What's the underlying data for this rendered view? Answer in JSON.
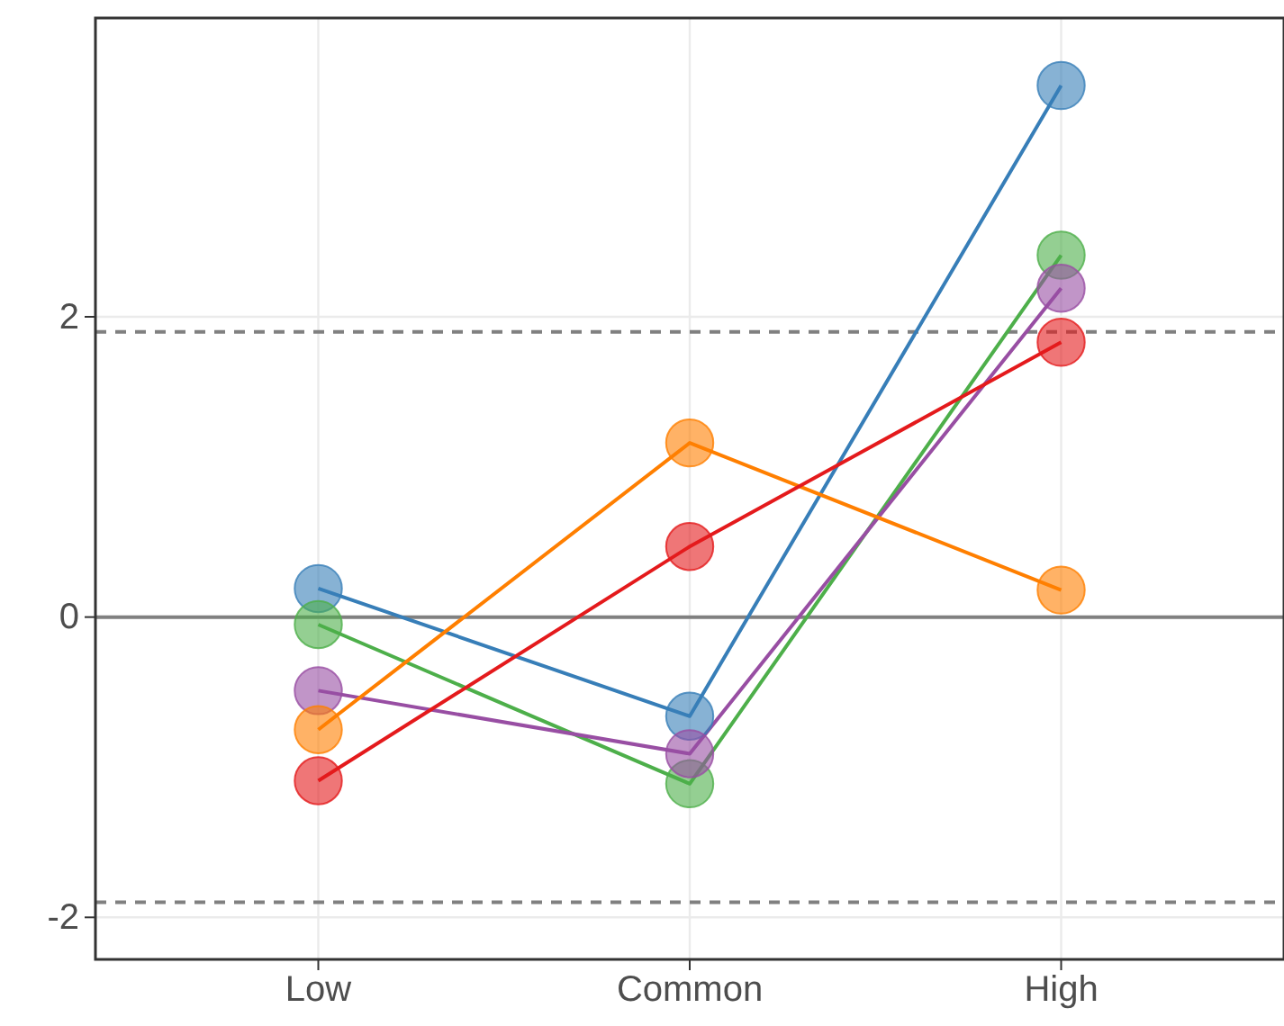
{
  "chart_data": {
    "type": "line",
    "categories": [
      "Low",
      "Common",
      "High"
    ],
    "series": [
      {
        "color": "#377eb8",
        "values": [
          0.19,
          -0.66,
          3.54
        ]
      },
      {
        "color": "#4daf4a",
        "values": [
          -0.05,
          -1.11,
          2.41
        ]
      },
      {
        "color": "#984ea3",
        "values": [
          -0.49,
          -0.91,
          2.19
        ]
      },
      {
        "color": "#ff7f00",
        "values": [
          -0.75,
          1.16,
          0.18
        ]
      },
      {
        "color": "#e41a1c",
        "values": [
          -1.09,
          0.47,
          1.83
        ]
      }
    ],
    "ylim": [
      -2.28,
      3.99
    ],
    "yticks": [
      -2,
      0,
      2
    ],
    "grid": true,
    "marker": "circle",
    "line_style": "solid",
    "ref_lines": [
      {
        "axis": "y",
        "value": 0,
        "color": "#808080",
        "line_style": "solid"
      },
      {
        "axis": "y",
        "value": 1.9,
        "color": "#808080",
        "line_style": "dashed"
      },
      {
        "axis": "y",
        "value": -1.9,
        "color": "#808080",
        "line_style": "dashed"
      }
    ]
  }
}
